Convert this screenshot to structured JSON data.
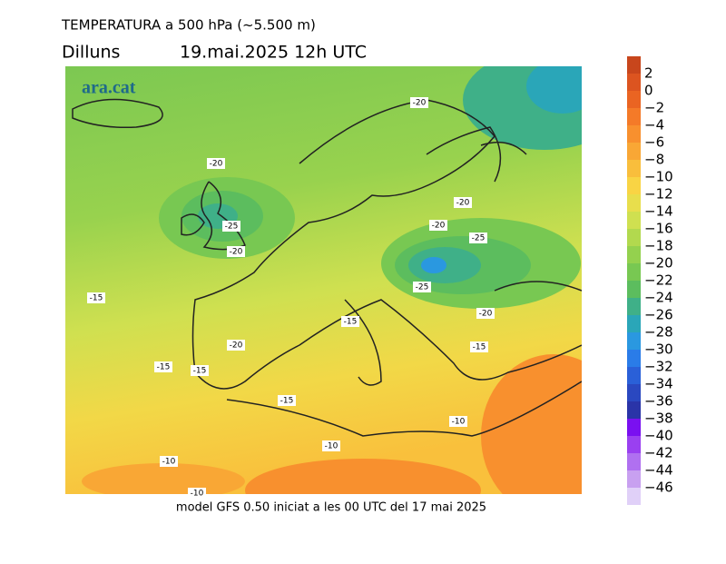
{
  "header": {
    "title": "TEMPERATURA a 500 hPa (~5.500 m)",
    "day": "Dilluns",
    "date": "19.mai.2025 12h UTC"
  },
  "logo": "ara.cat",
  "footer": "model GFS 0.50 iniciat a les 00 UTC del 17 mai 2025",
  "contour_labels": [
    "-20",
    "-20",
    "-25",
    "-20",
    "-20",
    "-20",
    "-25",
    "-25",
    "-15",
    "-15",
    "-20",
    "-15",
    "-15",
    "-20",
    "-15",
    "-15",
    "-10",
    "-10",
    "-10",
    "-10"
  ],
  "colorbar": {
    "labels": [
      "2",
      "0",
      "−2",
      "−4",
      "−6",
      "−8",
      "−10",
      "−12",
      "−14",
      "−16",
      "−18",
      "−20",
      "−22",
      "−24",
      "−26",
      "−28",
      "−30",
      "−32",
      "−34",
      "−36",
      "−38",
      "−40",
      "−42",
      "−44",
      "−46"
    ],
    "colors": [
      "#c8461c",
      "#dc5420",
      "#ea6422",
      "#f47a28",
      "#f8902e",
      "#f9a735",
      "#f9be3c",
      "#f9d444",
      "#e8de4c",
      "#cfe050",
      "#b2d94e",
      "#94d14e",
      "#78c852",
      "#5cbd5e",
      "#3fb088",
      "#2aa6b8",
      "#2a98e0",
      "#2a7ce8",
      "#2a60d8",
      "#2a48c0",
      "#2a34a8",
      "#7a10f0",
      "#9a40f0",
      "#b070f0",
      "#c8a0f0",
      "#e0d0f8"
    ]
  }
}
